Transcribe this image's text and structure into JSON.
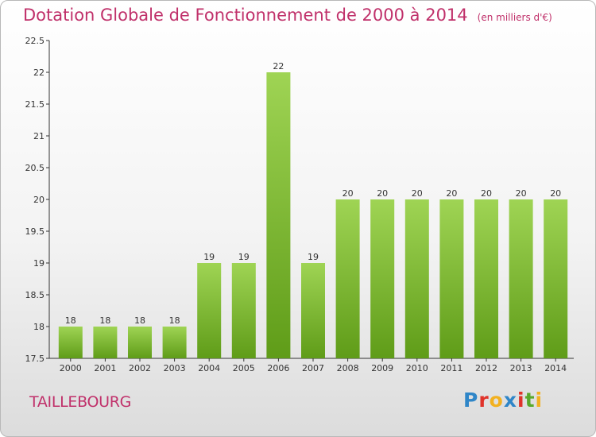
{
  "title": "Dotation Globale de Fonctionnement de 2000 à 2014",
  "subtitle": "(en milliers d'€)",
  "commune": "TAILLEBOURG",
  "logo": "Proxiti",
  "colors": {
    "title": "#c0306a",
    "bar_top": "#9fd454",
    "bar_bottom": "#5f9c18",
    "logo_letters": [
      "#2f86c8",
      "#e0332a",
      "#f2b120",
      "#2f86c8",
      "#e0332a",
      "#5aa92b",
      "#f2b120"
    ]
  },
  "chart_data": {
    "type": "bar",
    "title": "Dotation Globale de Fonctionnement de 2000 à 2014",
    "subtitle": "(en milliers d'€)",
    "categories": [
      "2000",
      "2001",
      "2002",
      "2003",
      "2004",
      "2005",
      "2006",
      "2007",
      "2008",
      "2009",
      "2010",
      "2011",
      "2012",
      "2013",
      "2014"
    ],
    "values": [
      18,
      18,
      18,
      18,
      19,
      19,
      22,
      19,
      20,
      20,
      20,
      20,
      20,
      20,
      20
    ],
    "value_labels": [
      "18",
      "18",
      "18",
      "18",
      "19",
      "19",
      "22",
      "19",
      "20",
      "20",
      "20",
      "20",
      "20",
      "20",
      "20"
    ],
    "ylim": [
      17.5,
      22.5
    ],
    "yticks": [
      "17.5",
      "18",
      "18.5",
      "19",
      "19.5",
      "20",
      "20.5",
      "21",
      "21.5",
      "22",
      "22.5"
    ],
    "grid": false,
    "xlabel": "",
    "ylabel": ""
  }
}
